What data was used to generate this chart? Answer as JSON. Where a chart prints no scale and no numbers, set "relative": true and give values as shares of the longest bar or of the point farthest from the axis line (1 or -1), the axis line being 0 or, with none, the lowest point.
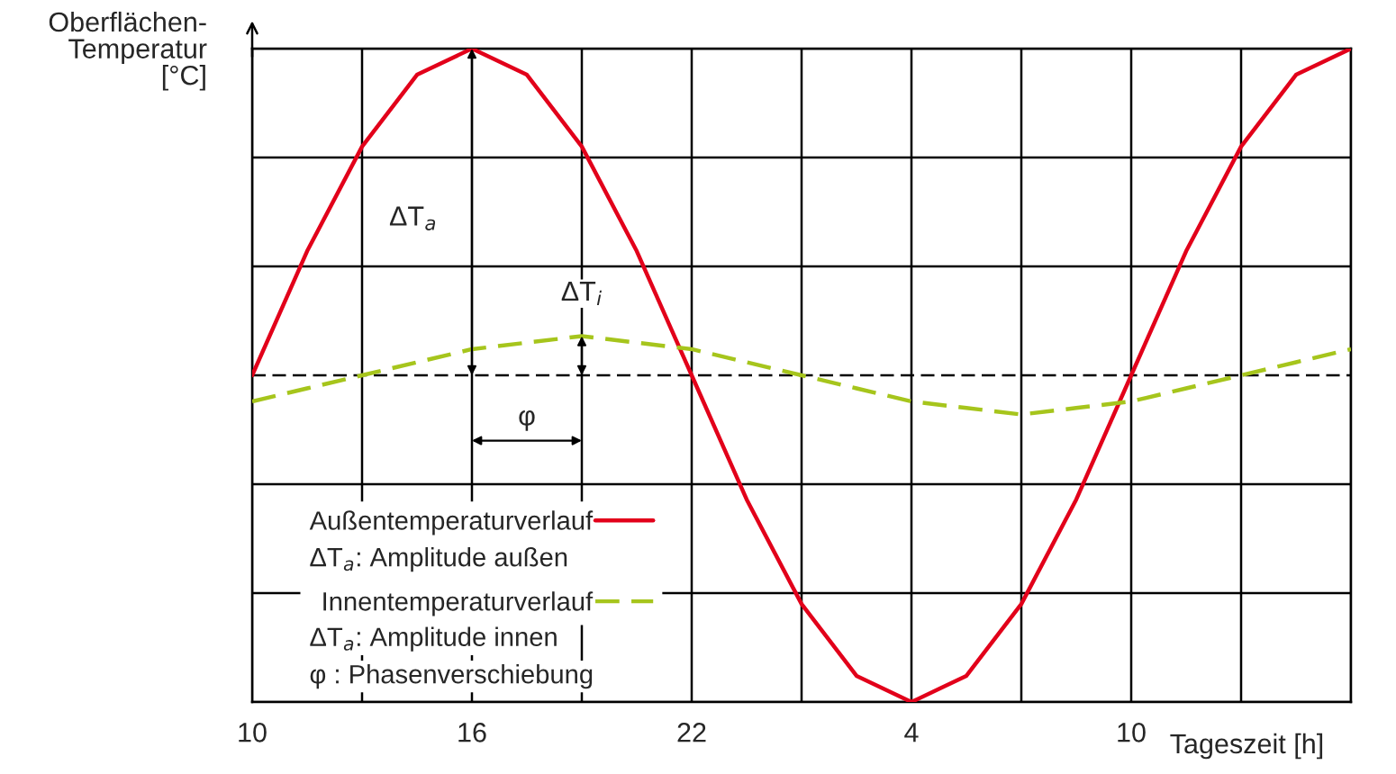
{
  "chart_data": {
    "type": "line",
    "relative": true,
    "xlabel": "Tageszeit [h]",
    "ylabel": "Oberflächen-\nTemperatur\n[°C]",
    "categories": [
      "10",
      null,
      null,
      null,
      "16",
      null,
      null,
      null,
      "22",
      null,
      null,
      null,
      "4",
      null,
      null,
      null,
      "10",
      null,
      null,
      null,
      null
    ],
    "series": [
      {
        "name": "Außentemperaturverlauf",
        "color": "#e2001a",
        "values": [
          0.5,
          0.69,
          0.85,
          0.96,
          1,
          0.96,
          0.85,
          0.69,
          0.5,
          0.31,
          0.15,
          0.04,
          0,
          0.04,
          0.15,
          0.31,
          0.5,
          0.69,
          0.85,
          0.96,
          1
        ]
      },
      {
        "name": "Innentemperaturverlauf",
        "color": "#a6c51c",
        "line_style": "dashed",
        "values": [
          0.46,
          0.48,
          0.5,
          0.52,
          0.54,
          0.55,
          0.56,
          0.55,
          0.54,
          0.52,
          0.5,
          0.48,
          0.46,
          0.45,
          0.44,
          0.45,
          0.46,
          0.48,
          0.5,
          0.52,
          0.54
        ]
      }
    ],
    "ref_lines": [
      {
        "axis": "y",
        "value": 0.5,
        "color": "#000000",
        "line_style": "dashed"
      }
    ],
    "annotations": [
      "ΔT$_{a}$",
      {
        "text": "ΔT$_{i}$",
        "y": 0.56
      },
      "φ",
      "ΔT$_{a}$: Amplitude außen",
      "ΔT$_{a}$: Amplitude innen",
      "φ : Phasenverschiebung"
    ],
    "grid": true,
    "legend": "bottom left",
    "marker": "none",
    "line_style": "solid"
  }
}
